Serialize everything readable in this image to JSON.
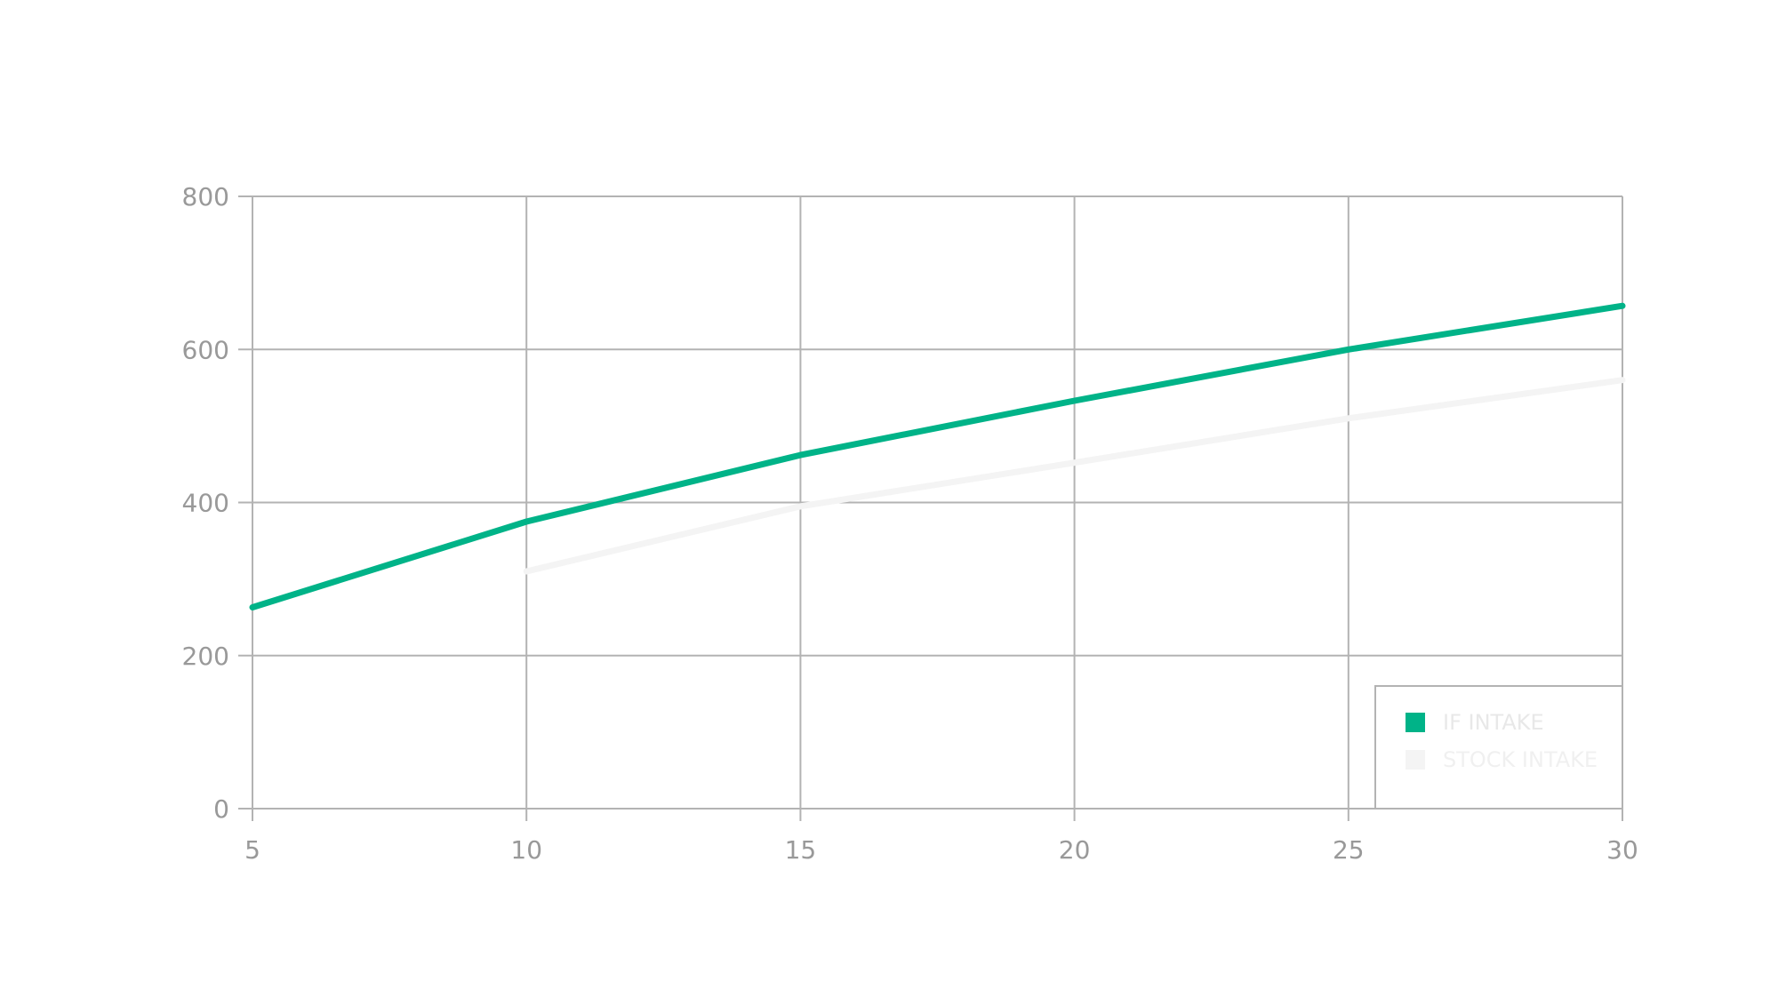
{
  "chart_data": {
    "type": "line",
    "title": "",
    "xlabel": "",
    "ylabel": "",
    "x": [
      5,
      10,
      15,
      20,
      25,
      30
    ],
    "xlim": [
      5,
      30
    ],
    "ylim": [
      0,
      800
    ],
    "x_ticks": [
      "5",
      "10",
      "15",
      "20",
      "25",
      "30"
    ],
    "y_ticks": [
      "0",
      "200",
      "400",
      "600",
      "800"
    ],
    "grid": true,
    "legend_position": "bottom-right",
    "series": [
      {
        "name": "IF INTAKE",
        "values": [
          263,
          375,
          462,
          533,
          600,
          657
        ],
        "color": "#00b388"
      },
      {
        "name": "STOCK INTAKE",
        "values": [
          null,
          310,
          395,
          452,
          510,
          560
        ],
        "color": "#f4f4f4"
      }
    ]
  }
}
